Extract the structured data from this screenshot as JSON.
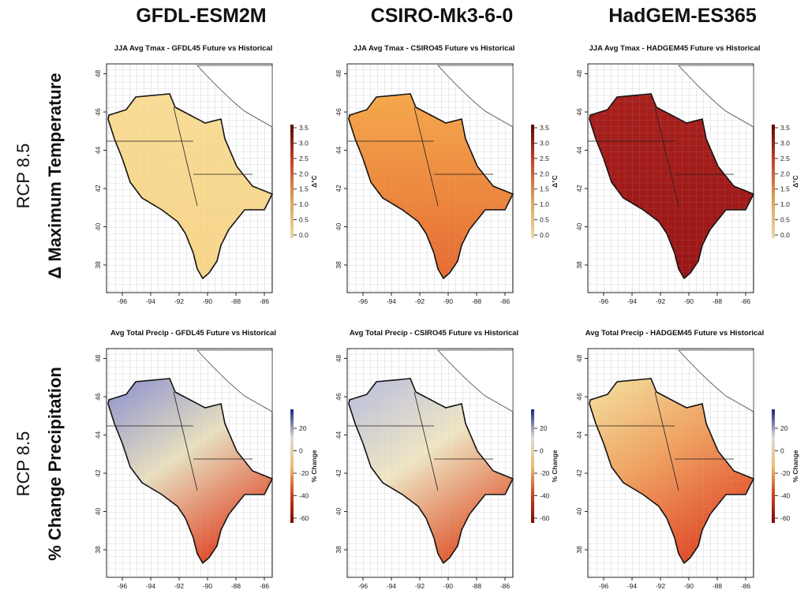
{
  "columns": [
    "GFDL-ESM2M",
    "CSIRO-Mk3-6-0",
    "HadGEM-ES365"
  ],
  "rows": [
    {
      "scenario": "RCP 8.5",
      "variable": "Δ Maximum Temperature"
    },
    {
      "scenario": "RCP 8.5",
      "variable": "% Change Precipitation"
    }
  ],
  "panels": [
    {
      "title": "JJA Avg Tmax - GFDL45 Future vs Historical",
      "fill": [
        "#f9dc96",
        "#f8d68a"
      ]
    },
    {
      "title": "JJA Avg Tmax - CSIRO45 Future vs Historical",
      "fill": [
        "#f6a84a",
        "#e66a32"
      ]
    },
    {
      "title": "JJA Avg Tmax - HADGEM45 Future vs Historical",
      "fill": [
        "#a8201c",
        "#9a1616"
      ]
    },
    {
      "title": "Avg Total Precip - GFDL45 Future vs Historical",
      "fill": [
        "#8a8fd0",
        "#e8e0c0",
        "#e04a2a"
      ]
    },
    {
      "title": "Avg Total Precip - CSIRO45 Future vs Historical",
      "fill": [
        "#b8bde0",
        "#efe6c4",
        "#e05a30"
      ]
    },
    {
      "title": "Avg Total Precip - HADGEM45 Future vs Historical",
      "fill": [
        "#f4e3a0",
        "#f0a060",
        "#e04a28"
      ]
    }
  ],
  "x_ticks": [
    "-96",
    "-94",
    "-92",
    "-90",
    "-88",
    "-86"
  ],
  "y_ticks": [
    "38",
    "40",
    "42",
    "44",
    "46",
    "48"
  ],
  "legends": [
    {
      "label": "Δ°C",
      "ticks": [
        "0.0",
        "0.5",
        "1.0",
        "1.5",
        "2.0",
        "2.5",
        "3.0",
        "3.5"
      ],
      "colors": [
        "#e8d9a4",
        "#d9a45c",
        "#c8452a",
        "#5a0808"
      ]
    },
    {
      "label": "% Change",
      "ticks": [
        "-60",
        "-40",
        "-20",
        "0",
        "20"
      ],
      "colors": [
        "#7a0a0a",
        "#d04020",
        "#e8c070",
        "#dcdcd8",
        "#1a237e"
      ]
    }
  ]
}
